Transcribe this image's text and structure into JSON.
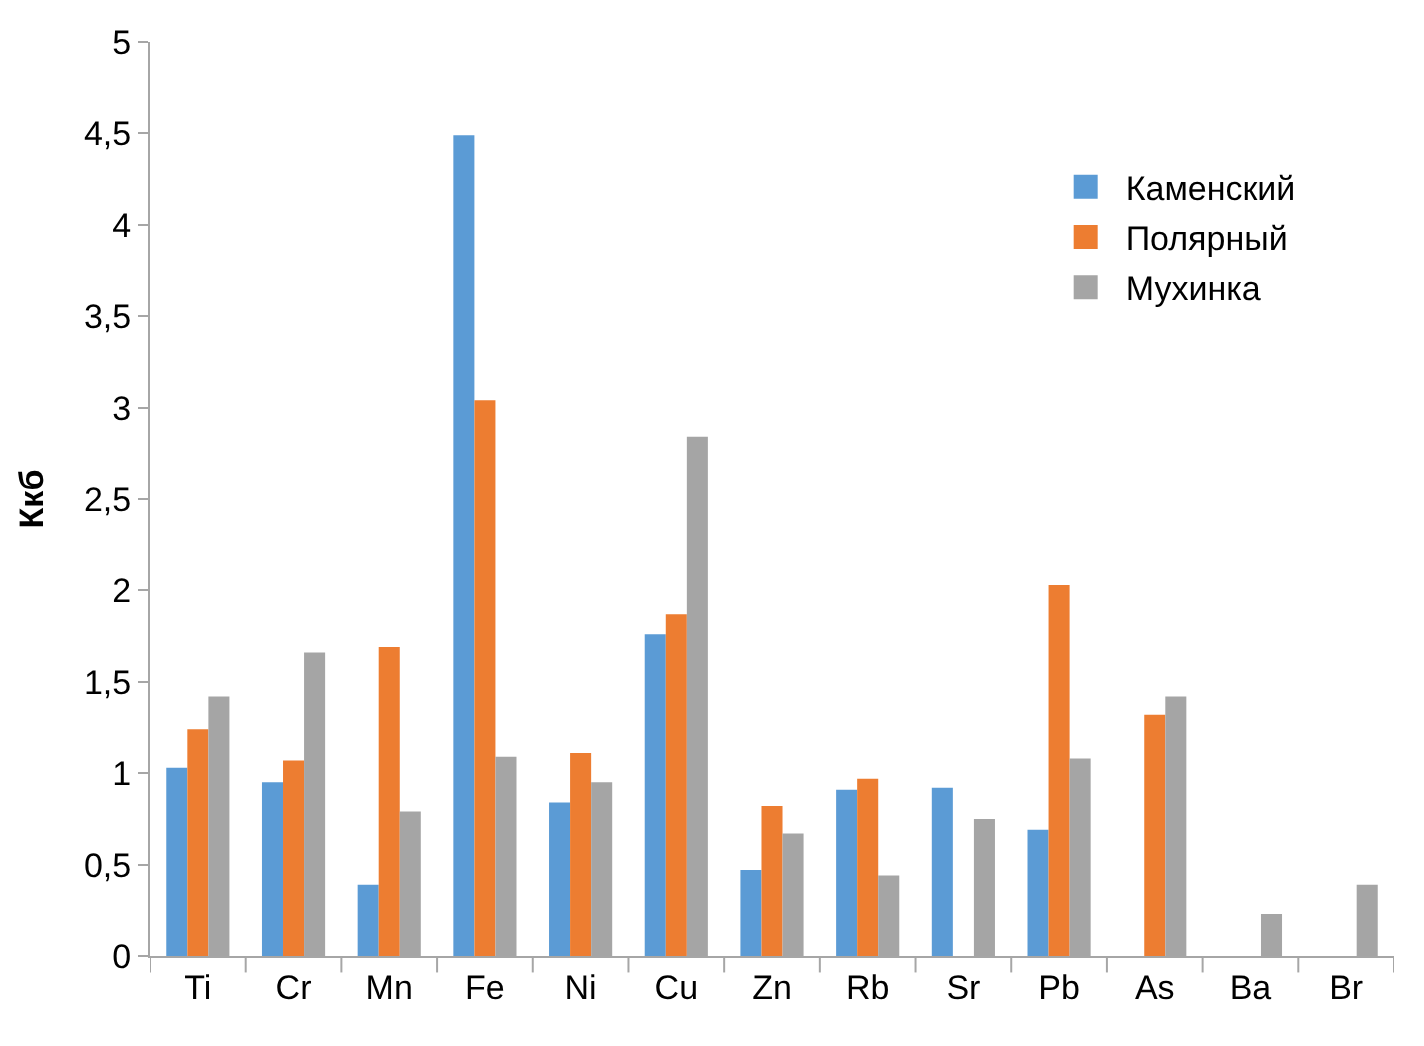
{
  "chart_data": {
    "type": "bar",
    "ylabel": "Ккб",
    "categories": [
      "Ti",
      "Cr",
      "Mn",
      "Fe",
      "Ni",
      "Cu",
      "Zn",
      "Rb",
      "Sr",
      "Pb",
      "As",
      "Ba",
      "Br"
    ],
    "series": [
      {
        "name": "Каменский",
        "color": "#5b9bd5",
        "values": [
          1.03,
          0.95,
          0.39,
          4.49,
          0.84,
          1.76,
          0.47,
          0.91,
          0.92,
          0.69,
          null,
          null,
          null
        ]
      },
      {
        "name": "Полярный",
        "color": "#ed7d31",
        "values": [
          1.24,
          1.07,
          1.69,
          3.04,
          1.11,
          1.87,
          0.82,
          0.97,
          null,
          2.03,
          1.32,
          null,
          null
        ]
      },
      {
        "name": "Мухинка",
        "color": "#a5a5a5",
        "values": [
          1.42,
          1.66,
          0.79,
          1.09,
          0.95,
          2.84,
          0.67,
          0.44,
          0.75,
          1.08,
          1.42,
          0.23,
          0.39
        ]
      }
    ],
    "ylim": [
      0,
      5
    ],
    "yticks": [
      0,
      {
        "value": 0.5,
        "label": "0,5"
      },
      1,
      {
        "value": 1.5,
        "label": "1,5"
      },
      2,
      {
        "value": 2.5,
        "label": "2,5"
      },
      3,
      {
        "value": 3.5,
        "label": "3,5"
      },
      4,
      {
        "value": 4.5,
        "label": "4,5"
      },
      5
    ],
    "legend": "top right"
  }
}
